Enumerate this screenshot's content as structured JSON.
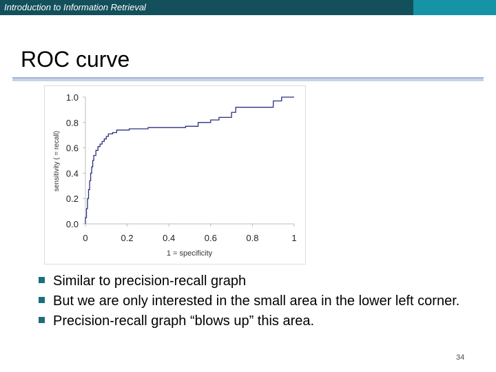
{
  "header": {
    "course_title": "Introduction to Information Retrieval"
  },
  "slide": {
    "title": "ROC curve",
    "page_number": "34"
  },
  "bullets": [
    "Similar to precision-recall graph",
    "But we are only interested in the small area in the lower left corner.",
    "Precision-recall graph “blows up” this area."
  ],
  "colors": {
    "header_bar": "#13505b",
    "header_accent": "#1693a5",
    "bullet": "#1a6f7a",
    "curve": "#2b2f80"
  },
  "chart_data": {
    "type": "line",
    "title": "",
    "xlabel": "1 = specificity",
    "ylabel": "sensitivity ( = recall)",
    "xlim": [
      0,
      1
    ],
    "ylim": [
      0,
      1
    ],
    "xticks": [
      0,
      0.2,
      0.4,
      0.6,
      0.8,
      1
    ],
    "xtick_labels": [
      "0",
      "0.2",
      "0.4",
      "0.6",
      "0.8",
      "1"
    ],
    "yticks": [
      0,
      0.2,
      0.4,
      0.6,
      0.8,
      1
    ],
    "ytick_labels": [
      "0.0",
      "0.2",
      "0.4",
      "0.6",
      "0.8",
      "1.0"
    ],
    "grid": false,
    "series": [
      {
        "x": [
          0,
          0,
          0.005,
          0.005,
          0.01,
          0.01,
          0.015,
          0.015,
          0.02,
          0.02,
          0.025,
          0.025,
          0.03,
          0.03,
          0.035,
          0.035,
          0.04,
          0.04,
          0.05,
          0.05,
          0.06,
          0.06,
          0.07,
          0.07,
          0.08,
          0.08,
          0.09,
          0.09,
          0.1,
          0.1,
          0.11,
          0.11,
          0.13,
          0.13,
          0.15,
          0.15,
          0.21,
          0.21,
          0.3,
          0.3,
          0.48,
          0.48,
          0.54,
          0.54,
          0.6,
          0.6,
          0.64,
          0.64,
          0.7,
          0.7,
          0.72,
          0.72,
          0.9,
          0.9,
          0.94,
          0.94,
          1
        ],
        "y": [
          0,
          0.05,
          0.05,
          0.12,
          0.12,
          0.2,
          0.2,
          0.27,
          0.27,
          0.34,
          0.34,
          0.4,
          0.4,
          0.45,
          0.45,
          0.5,
          0.5,
          0.54,
          0.54,
          0.58,
          0.58,
          0.61,
          0.61,
          0.63,
          0.63,
          0.65,
          0.65,
          0.67,
          0.67,
          0.69,
          0.69,
          0.71,
          0.71,
          0.72,
          0.72,
          0.74,
          0.74,
          0.75,
          0.75,
          0.76,
          0.76,
          0.77,
          0.77,
          0.8,
          0.8,
          0.82,
          0.82,
          0.84,
          0.84,
          0.88,
          0.88,
          0.92,
          0.92,
          0.97,
          0.97,
          1,
          1
        ]
      }
    ]
  }
}
